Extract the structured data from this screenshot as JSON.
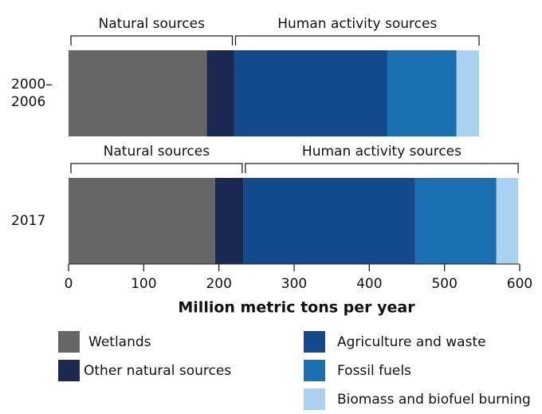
{
  "chart_data": {
    "type": "stacked-bar-horizontal",
    "categories": [
      "2000–2006",
      "2017"
    ],
    "series": [
      {
        "name": "Wetlands",
        "color": "#666666",
        "values": [
          184,
          195
        ]
      },
      {
        "name": "Other natural sources",
        "color": "#19294f",
        "values": [
          36,
          38
        ]
      },
      {
        "name": "Agriculture and waste",
        "color": "#134a8c",
        "values": [
          204,
          228
        ]
      },
      {
        "name": "Fossil fuels",
        "color": "#1a6fb0",
        "values": [
          92,
          108
        ]
      },
      {
        "name": "Biomass and biofuel burning",
        "color": "#a8d2f0",
        "values": [
          30,
          29
        ]
      }
    ],
    "xlabel": "Million metric tons per year",
    "xlim": [
      0,
      600
    ],
    "xticks": [
      0,
      100,
      200,
      300,
      400,
      500,
      600
    ],
    "annotations": [
      [
        "Natural sources",
        "Human activity sources"
      ],
      [
        "Natural sources",
        "Human activity sources"
      ]
    ]
  }
}
